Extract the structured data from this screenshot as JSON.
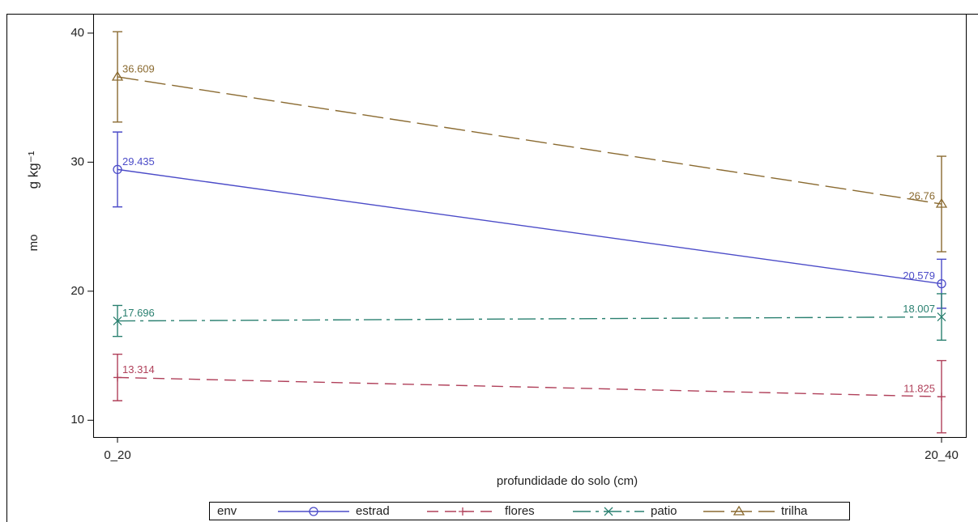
{
  "chart_data": {
    "type": "line",
    "xlabel": "profundidade do solo (cm)",
    "ylabel": "mo",
    "ylabel_unit": "g kg⁻¹",
    "categories": [
      "0_20",
      "20_40"
    ],
    "ylim": [
      8.7,
      41.5
    ],
    "yticks": [
      10,
      20,
      30,
      40
    ],
    "legend_title": "env",
    "legend_position": "bottom",
    "series": [
      {
        "name": "estrad",
        "color": "#4b4bc8",
        "marker": "circle",
        "linestyle": "solid",
        "values": [
          29.435,
          20.579
        ],
        "errors": [
          2.9,
          1.9
        ]
      },
      {
        "name": "flores",
        "color": "#b0405a",
        "marker": "plus",
        "linestyle": "dashed",
        "values": [
          13.314,
          11.825
        ],
        "errors": [
          1.8,
          2.8
        ]
      },
      {
        "name": "patio",
        "color": "#2a8070",
        "marker": "x",
        "linestyle": "dashdot",
        "values": [
          17.696,
          18.007
        ],
        "errors": [
          1.2,
          1.8
        ]
      },
      {
        "name": "trilha",
        "color": "#8a6a30",
        "marker": "triangle",
        "linestyle": "longdash",
        "values": [
          36.609,
          26.76
        ],
        "errors": [
          3.5,
          3.7
        ]
      }
    ]
  }
}
